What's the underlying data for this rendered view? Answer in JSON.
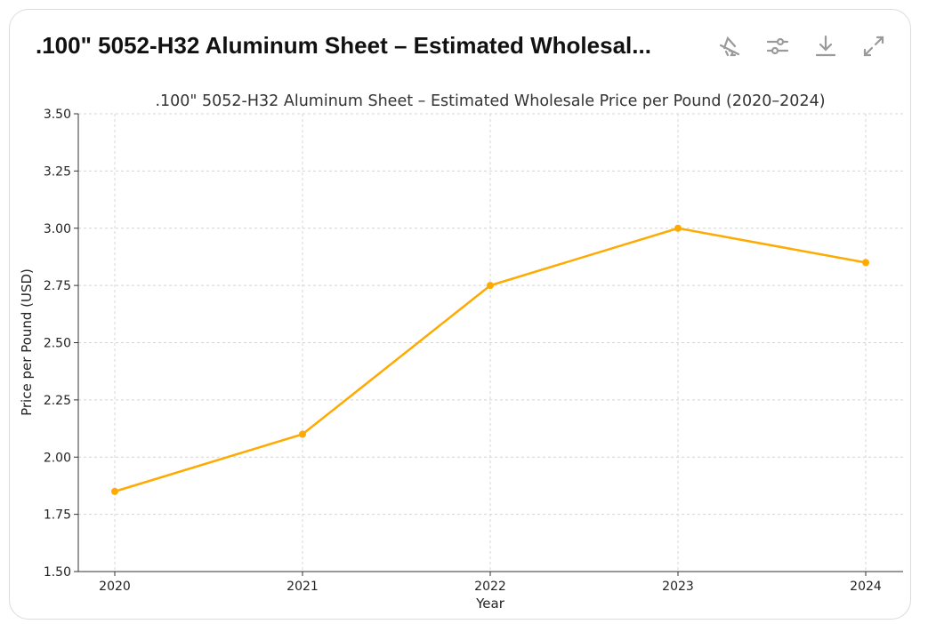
{
  "header": {
    "title": ".100\" 5052-H32 Aluminum Sheet – Estimated Wholesal...",
    "icons": [
      "interactive-chart-off-icon",
      "sliders-icon",
      "download-icon",
      "expand-icon"
    ]
  },
  "chart_data": {
    "type": "line",
    "title": ".100\" 5052-H32 Aluminum Sheet – Estimated Wholesale Price per Pound (2020–2024)",
    "xlabel": "Year",
    "ylabel": "Price per Pound (USD)",
    "x": [
      "2020",
      "2021",
      "2022",
      "2023",
      "2024"
    ],
    "values": [
      1.85,
      2.1,
      2.75,
      3.0,
      2.85
    ],
    "ylim": [
      1.5,
      3.5
    ],
    "yticks": [
      "1.50",
      "1.75",
      "2.00",
      "2.25",
      "2.50",
      "2.75",
      "3.00",
      "3.25",
      "3.50"
    ],
    "grid": true,
    "color": "#FFAA00",
    "marker": "circle"
  }
}
